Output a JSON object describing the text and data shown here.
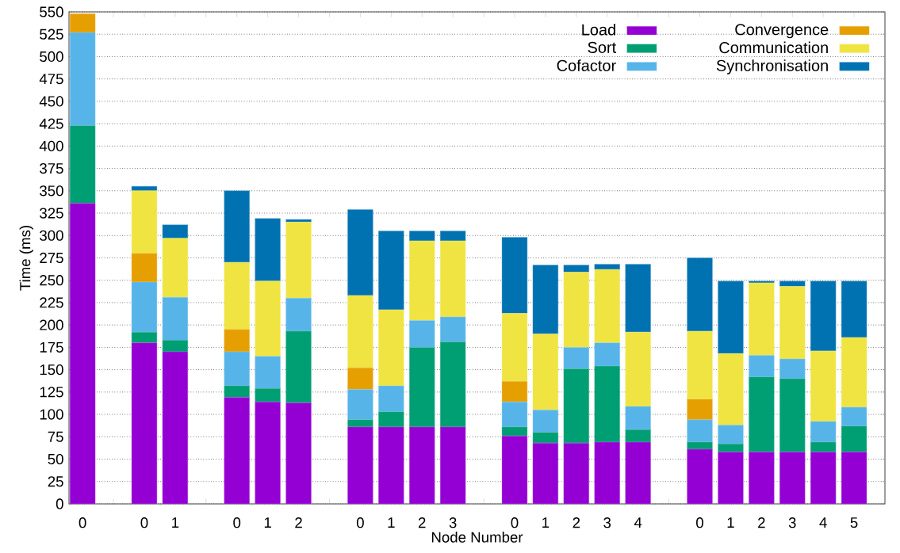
{
  "chart_data": {
    "type": "bar",
    "stacked": true,
    "xlabel": "Node Number",
    "ylabel": "Time (ms)",
    "categories": [
      "0",
      null,
      "0",
      "1",
      null,
      "0",
      "1",
      "2",
      null,
      "0",
      "1",
      "2",
      "3",
      null,
      "0",
      "1",
      "2",
      "3",
      "4",
      null,
      "0",
      "1",
      "2",
      "3",
      "4",
      "5"
    ],
    "series": [
      {
        "name": "Load",
        "color": "#9400d3",
        "values": [
          336,
          null,
          180,
          170,
          null,
          119,
          114,
          113,
          null,
          86,
          86,
          86,
          86,
          null,
          76,
          68,
          68,
          69,
          69,
          null,
          61,
          58,
          58,
          58,
          58,
          58
        ]
      },
      {
        "name": "Sort",
        "color": "#009e73",
        "values": [
          87,
          null,
          12,
          13,
          null,
          13,
          15,
          80,
          null,
          8,
          17,
          89,
          95,
          null,
          10,
          12,
          83,
          85,
          14,
          null,
          8,
          9,
          84,
          82,
          11,
          29
        ]
      },
      {
        "name": "Cofactor",
        "color": "#56b4e9",
        "values": [
          104,
          null,
          56,
          48,
          null,
          38,
          36,
          37,
          null,
          34,
          29,
          30,
          28,
          null,
          28,
          25,
          24,
          26,
          26,
          null,
          25,
          21,
          24,
          22,
          23,
          21
        ]
      },
      {
        "name": "Convergence",
        "color": "#e69f00",
        "values": [
          21,
          null,
          32,
          0,
          null,
          25,
          0,
          0,
          null,
          24,
          0,
          0,
          0,
          null,
          23,
          0,
          0,
          0,
          0,
          null,
          23,
          0,
          0,
          0,
          0,
          0
        ]
      },
      {
        "name": "Communication",
        "color": "#f0e442",
        "values": [
          0,
          null,
          70,
          66,
          null,
          75,
          84,
          85,
          null,
          81,
          85,
          89,
          85,
          null,
          76,
          85,
          84,
          82,
          83,
          null,
          76,
          80,
          81,
          81,
          79,
          78
        ]
      },
      {
        "name": "Synchronisation",
        "color": "#0072b2",
        "values": [
          0,
          null,
          5,
          15,
          null,
          80,
          70,
          3,
          null,
          96,
          88,
          11,
          11,
          null,
          85,
          77,
          8,
          6,
          76,
          null,
          82,
          81,
          2,
          6,
          78,
          63
        ]
      }
    ],
    "ylim": [
      0,
      550
    ],
    "yticks": [
      0,
      25,
      50,
      75,
      100,
      125,
      150,
      175,
      200,
      225,
      250,
      275,
      300,
      325,
      350,
      375,
      400,
      425,
      450,
      475,
      500,
      525,
      550
    ],
    "grid": "y",
    "legend": "top right"
  }
}
